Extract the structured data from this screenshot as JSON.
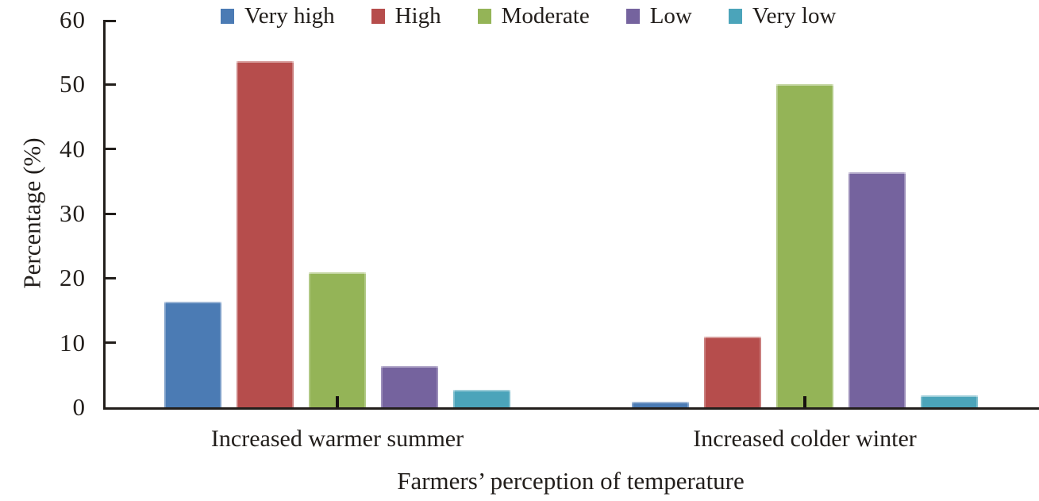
{
  "chart_data": {
    "type": "bar",
    "title": "",
    "xlabel": "Farmers’ perception of temperature",
    "ylabel": "Percentage (%)",
    "ylim": [
      0,
      60
    ],
    "yticks": [
      0,
      10,
      20,
      30,
      40,
      50,
      60
    ],
    "grid": false,
    "legend_position": "top",
    "categories": [
      "Increased warmer summer",
      "Increased colder winter"
    ],
    "series": [
      {
        "name": "Very high",
        "color": "#4b7bb4",
        "values": [
          16.4,
          0.9
        ]
      },
      {
        "name": "High",
        "color": "#b64d4c",
        "values": [
          53.6,
          10.9
        ]
      },
      {
        "name": "Moderate",
        "color": "#94b457",
        "values": [
          20.9,
          50.0
        ]
      },
      {
        "name": "Low",
        "color": "#75639e",
        "values": [
          6.4,
          36.4
        ]
      },
      {
        "name": "Very low",
        "color": "#4ba4ba",
        "values": [
          2.7,
          1.8
        ]
      }
    ],
    "axis_color": "#221e1b",
    "text_color": "#221e1b"
  }
}
